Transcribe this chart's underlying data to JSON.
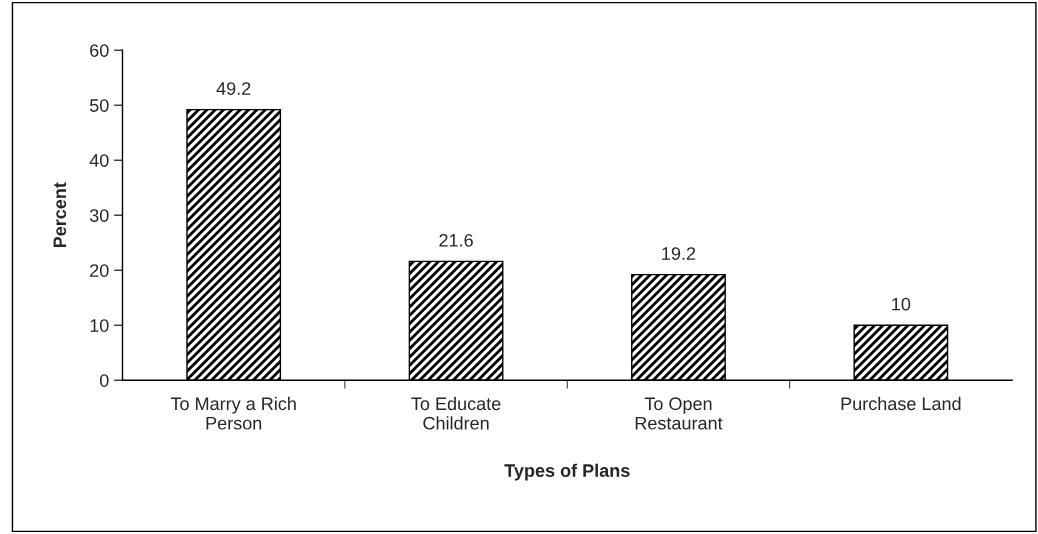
{
  "chart_data": {
    "type": "bar",
    "xlabel": "Types of Plans",
    "ylabel": "Percent",
    "categories": [
      "To Marry a Rich\nPerson",
      "To Educate\nChildren",
      "To Open\nRestaurant",
      "Purchase Land"
    ],
    "values": [
      49.2,
      21.6,
      19.2,
      10
    ],
    "color": "#000000",
    "ylim": [
      0,
      60
    ],
    "yticks": [
      0,
      10,
      20,
      30,
      40,
      50,
      60
    ],
    "data_labels": true,
    "grid": false,
    "legend": false
  }
}
